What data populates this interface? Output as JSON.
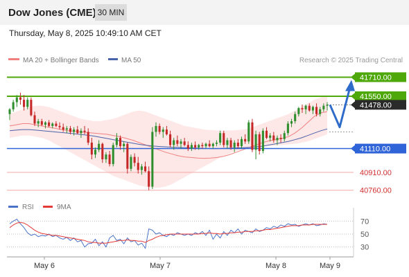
{
  "header": {
    "title": "Dow Jones (CME)",
    "timeframe": "30 MIN",
    "timestamp": "Thursday, May 8, 2025 10:49:10 AM CET"
  },
  "legend": {
    "bb_label": "MA 20 + Bollinger Bands",
    "ma50_label": "MA 50",
    "copyright": "Research © 2025 Trading Central",
    "rsi_label": "RSI",
    "rsi_ma_label": "9MA"
  },
  "colors": {
    "up_candle": "#2f8f2f",
    "down_candle": "#c62828",
    "resistance": "#4ea80a",
    "support": "#2f63d8",
    "pivot_line": "#f4a7a7",
    "band_fill": "#fde3e3",
    "ma20": "#f08080",
    "ma50": "#4a62a8",
    "arrow": "#2f6bc9",
    "rsi": "#4a72c8",
    "rsi_ma": "#e53935"
  },
  "chart_data": [
    {
      "type": "candlestick",
      "panel": "price",
      "x_tick_labels": [
        "May 6",
        "May 7",
        "May 8",
        "May 9"
      ],
      "last_price": 41478.0,
      "price_levels": [
        {
          "label": "41710.00",
          "value": 41710,
          "kind": "resistance"
        },
        {
          "label": "41550.00",
          "value": 41550,
          "kind": "resistance"
        },
        {
          "label": "41478.00",
          "value": 41478,
          "kind": "last"
        },
        {
          "label": "41110.00",
          "value": 41110,
          "kind": "support"
        },
        {
          "label": "40910.00",
          "value": 40910,
          "kind": "support-minor"
        },
        {
          "label": "40760.00",
          "value": 40760,
          "kind": "support-minor"
        }
      ],
      "ylim": [
        40700,
        41800
      ],
      "candles": [
        [
          41400,
          41450,
          41350,
          41440
        ],
        [
          41440,
          41520,
          41420,
          41500
        ],
        [
          41500,
          41560,
          41460,
          41540
        ],
        [
          41540,
          41580,
          41480,
          41520
        ],
        [
          41520,
          41560,
          41430,
          41460
        ],
        [
          41460,
          41540,
          41440,
          41520
        ],
        [
          41520,
          41540,
          41380,
          41390
        ],
        [
          41390,
          41420,
          41300,
          41320
        ],
        [
          41320,
          41360,
          41290,
          41340
        ],
        [
          41340,
          41360,
          41300,
          41310
        ],
        [
          41310,
          41340,
          41280,
          41330
        ],
        [
          41330,
          41350,
          41290,
          41300
        ],
        [
          41300,
          41330,
          41280,
          41320
        ],
        [
          41320,
          41340,
          41290,
          41300
        ],
        [
          41300,
          41330,
          41270,
          41290
        ],
        [
          41290,
          41320,
          41250,
          41270
        ],
        [
          41270,
          41300,
          41240,
          41280
        ],
        [
          41280,
          41300,
          41230,
          41250
        ],
        [
          41250,
          41290,
          41220,
          41270
        ],
        [
          41270,
          41300,
          41230,
          41240
        ],
        [
          41240,
          41280,
          41200,
          41260
        ],
        [
          41260,
          41300,
          41230,
          41250
        ],
        [
          41250,
          41280,
          41140,
          41160
        ],
        [
          41160,
          41200,
          41020,
          41060
        ],
        [
          41060,
          41120,
          41030,
          41100
        ],
        [
          41100,
          41180,
          41080,
          41150
        ],
        [
          41150,
          41160,
          40990,
          41020
        ],
        [
          41020,
          41080,
          40990,
          41060
        ],
        [
          41060,
          41090,
          40960,
          40980
        ],
        [
          40980,
          41160,
          40960,
          41140
        ],
        [
          41140,
          41240,
          41120,
          41200
        ],
        [
          41200,
          41220,
          41100,
          41130
        ],
        [
          41130,
          41170,
          41080,
          41150
        ],
        [
          41150,
          41160,
          40900,
          40940
        ],
        [
          40940,
          41060,
          40920,
          41040
        ],
        [
          41040,
          41070,
          40960,
          40990
        ],
        [
          40990,
          41040,
          40900,
          40930
        ],
        [
          40930,
          40980,
          40890,
          40960
        ],
        [
          40960,
          41000,
          40910,
          40920
        ],
        [
          40920,
          40960,
          40760,
          40790
        ],
        [
          40790,
          41290,
          40770,
          41250
        ],
        [
          41250,
          41330,
          41210,
          41300
        ],
        [
          41300,
          41320,
          41230,
          41250
        ],
        [
          41250,
          41290,
          41200,
          41270
        ],
        [
          41270,
          41300,
          41220,
          41230
        ],
        [
          41230,
          41260,
          41120,
          41140
        ],
        [
          41140,
          41200,
          41100,
          41180
        ],
        [
          41180,
          41220,
          41130,
          41150
        ],
        [
          41150,
          41190,
          41110,
          41170
        ],
        [
          41170,
          41200,
          41130,
          41140
        ],
        [
          41140,
          41170,
          41090,
          41110
        ],
        [
          41110,
          41160,
          41090,
          41140
        ],
        [
          41140,
          41170,
          41100,
          41120
        ],
        [
          41120,
          41150,
          41100,
          41140
        ],
        [
          41140,
          41160,
          41110,
          41130
        ],
        [
          41130,
          41160,
          41110,
          41150
        ],
        [
          41150,
          41180,
          41120,
          41130
        ],
        [
          41130,
          41160,
          41110,
          41150
        ],
        [
          41150,
          41180,
          41130,
          41160
        ],
        [
          41160,
          41260,
          41140,
          41240
        ],
        [
          41240,
          41260,
          41120,
          41140
        ],
        [
          41140,
          41200,
          41110,
          41180
        ],
        [
          41180,
          41200,
          41100,
          41120
        ],
        [
          41120,
          41180,
          41080,
          41160
        ],
        [
          41160,
          41190,
          41110,
          41130
        ],
        [
          41130,
          41210,
          41110,
          41190
        ],
        [
          41190,
          41230,
          41150,
          41170
        ],
        [
          41170,
          41350,
          41150,
          41330
        ],
        [
          41330,
          41360,
          41080,
          41100
        ],
        [
          41100,
          41260,
          41020,
          41230
        ],
        [
          41230,
          41250,
          41060,
          41090
        ],
        [
          41090,
          41280,
          41070,
          41260
        ],
        [
          41260,
          41290,
          41190,
          41200
        ],
        [
          41200,
          41240,
          41170,
          41220
        ],
        [
          41220,
          41250,
          41160,
          41180
        ],
        [
          41180,
          41220,
          41140,
          41200
        ],
        [
          41200,
          41230,
          41160,
          41190
        ],
        [
          41190,
          41260,
          41170,
          41240
        ],
        [
          41240,
          41340,
          41220,
          41320
        ],
        [
          41320,
          41360,
          41290,
          41340
        ],
        [
          41340,
          41420,
          41320,
          41400
        ],
        [
          41400,
          41460,
          41380,
          41450
        ],
        [
          41450,
          41480,
          41410,
          41440
        ],
        [
          41440,
          41480,
          41400,
          41470
        ],
        [
          41470,
          41490,
          41420,
          41430
        ],
        [
          41430,
          41470,
          41400,
          41460
        ],
        [
          41460,
          41490,
          41380,
          41400
        ],
        [
          41400,
          41460,
          41380,
          41440
        ],
        [
          41440,
          41490,
          41420,
          41470
        ],
        [
          41470,
          41500,
          41430,
          41478
        ]
      ],
      "ma20": [
        41300,
        41310,
        41320,
        41320,
        41310,
        41300,
        41290,
        41280,
        41270,
        41260,
        41255,
        41250,
        41245,
        41240,
        41235,
        41230,
        41220,
        41210,
        41195,
        41180,
        41160,
        41140,
        41120,
        41100,
        41080,
        41065,
        41050,
        41040,
        41035,
        41030,
        41028,
        41030,
        41035,
        41045,
        41060,
        41080,
        41100,
        41120,
        41140,
        41160,
        41175,
        41185,
        41195,
        41210,
        41240,
        41280,
        41330,
        41380,
        41410,
        41420
      ],
      "ma50": [
        41260,
        41265,
        41270,
        41270,
        41265,
        41260,
        41255,
        41250,
        41245,
        41240,
        41235,
        41228,
        41222,
        41215,
        41205,
        41195,
        41185,
        41175,
        41165,
        41155,
        41145,
        41138,
        41132,
        41128,
        41125,
        41122,
        41120,
        41118,
        41116,
        41114,
        41112,
        41110,
        41110,
        41112,
        41114,
        41116,
        41118,
        41120,
        41125,
        41130,
        41140,
        41150,
        41160,
        41170,
        41185,
        41200,
        41220,
        41240,
        41260,
        41275
      ],
      "band_upper": [
        41400,
        41420,
        41440,
        41460,
        41470,
        41470,
        41460,
        41440,
        41420,
        41400,
        41380,
        41360,
        41350,
        41340,
        41340,
        41350,
        41360,
        41380,
        41400,
        41420,
        41430,
        41420,
        41400,
        41380,
        41360,
        41340,
        41320,
        41300,
        41290,
        41280,
        41270,
        41265,
        41262,
        41260,
        41262,
        41265,
        41270,
        41280,
        41300,
        41320,
        41340,
        41360,
        41380,
        41400,
        41430,
        41460,
        41490,
        41520,
        41540,
        41550
      ],
      "band_lower": [
        41200,
        41210,
        41220,
        41220,
        41210,
        41200,
        41180,
        41150,
        41120,
        41090,
        41060,
        41030,
        41000,
        40970,
        40940,
        40910,
        40880,
        40860,
        40840,
        40820,
        40800,
        40790,
        40780,
        40780,
        40790,
        40810,
        40840,
        40870,
        40900,
        40930,
        40960,
        40990,
        41020,
        41050,
        41070,
        41090,
        41105,
        41115,
        41120,
        41125,
        41130,
        41135,
        41140,
        41145,
        41150,
        41160,
        41170,
        41190,
        41210,
        41230
      ],
      "forecast_path": [
        {
          "from": "41478",
          "to": "41290"
        },
        {
          "from": "41290",
          "to": "41710"
        }
      ]
    },
    {
      "type": "line",
      "panel": "rsi",
      "ylim": [
        20,
        80
      ],
      "y_ticks": [
        70,
        50,
        30
      ],
      "series": [
        {
          "name": "RSI",
          "values": [
            66,
            70,
            73,
            66,
            60,
            52,
            48,
            50,
            46,
            48,
            47,
            50,
            46,
            48,
            44,
            42,
            45,
            40,
            44,
            38,
            40,
            30,
            35,
            36,
            42,
            32,
            38,
            30,
            44,
            48,
            40,
            42,
            35,
            44,
            38,
            40,
            33,
            36,
            28,
            58,
            56,
            50,
            52,
            48,
            46,
            50,
            48,
            52,
            50,
            48,
            50,
            48,
            52,
            50,
            54,
            48,
            56,
            42,
            50,
            44,
            54,
            48,
            56,
            52,
            58,
            50,
            56,
            54,
            52,
            58,
            54,
            56,
            60,
            58,
            62,
            60,
            64,
            62,
            66,
            64,
            65,
            62,
            64,
            66,
            64,
            66,
            63,
            64,
            66,
            65
          ]
        },
        {
          "name": "9MA",
          "values": [
            60,
            64,
            67,
            68,
            67,
            64,
            60,
            56,
            53,
            51,
            50,
            49,
            48,
            48,
            47,
            46,
            45,
            44,
            43,
            42,
            41,
            40,
            38,
            37,
            37,
            36,
            36,
            36,
            37,
            38,
            39,
            40,
            40,
            41,
            40,
            40,
            39,
            39,
            37,
            40,
            42,
            45,
            47,
            48,
            49,
            50,
            50,
            50,
            50,
            50,
            50,
            50,
            50,
            50,
            51,
            51,
            52,
            51,
            51,
            50,
            51,
            51,
            52,
            52,
            53,
            53,
            54,
            54,
            54,
            55,
            55,
            56,
            57,
            57,
            58,
            59,
            60,
            61,
            62,
            63,
            63,
            63,
            64,
            64,
            64,
            65,
            65,
            65,
            65,
            65
          ]
        }
      ]
    }
  ]
}
